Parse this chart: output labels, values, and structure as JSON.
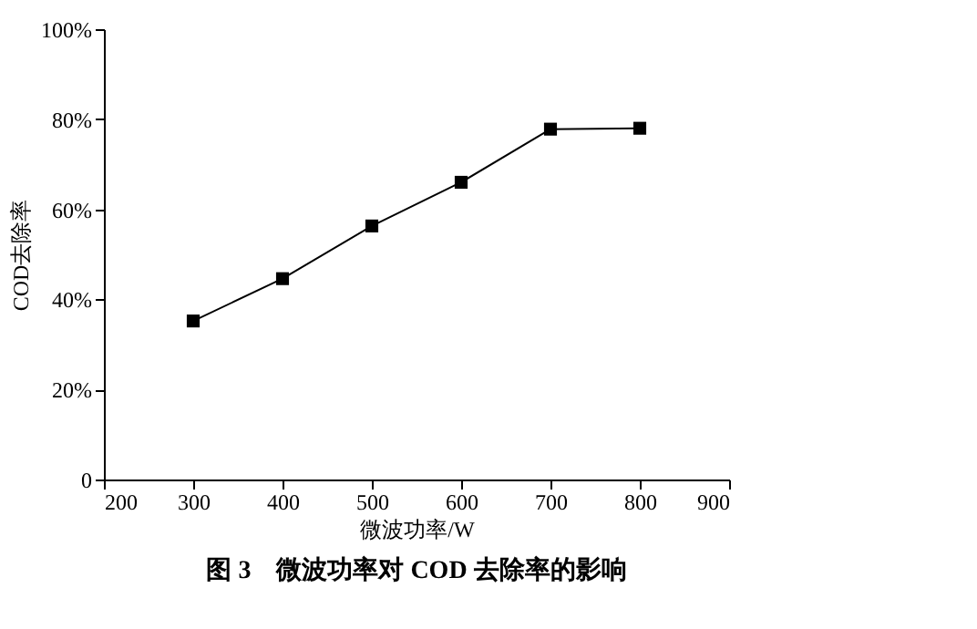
{
  "chart_data": {
    "type": "line",
    "title": "图 3　微波功率对 COD 去除率的影响",
    "xlabel": "微波功率/W",
    "ylabel": "COD去除率",
    "x": [
      300,
      400,
      500,
      600,
      700,
      800
    ],
    "series": [
      {
        "color": "#000000",
        "values": [
          35.2,
          44.6,
          56.3,
          66.0,
          77.8,
          78.0
        ]
      }
    ],
    "xlim": [
      200,
      900
    ],
    "xticks": [
      200,
      300,
      400,
      500,
      600,
      700,
      800,
      900
    ],
    "ylim": [
      0,
      100
    ],
    "yticks": [
      0,
      {
        "value": 20,
        "label": "20%"
      },
      {
        "value": 40,
        "label": "40%"
      },
      {
        "value": 60,
        "label": "60%"
      },
      {
        "value": 80,
        "label": "80%"
      },
      {
        "value": 100,
        "label": "100%"
      }
    ],
    "marker": "square",
    "line_style": "solid"
  }
}
